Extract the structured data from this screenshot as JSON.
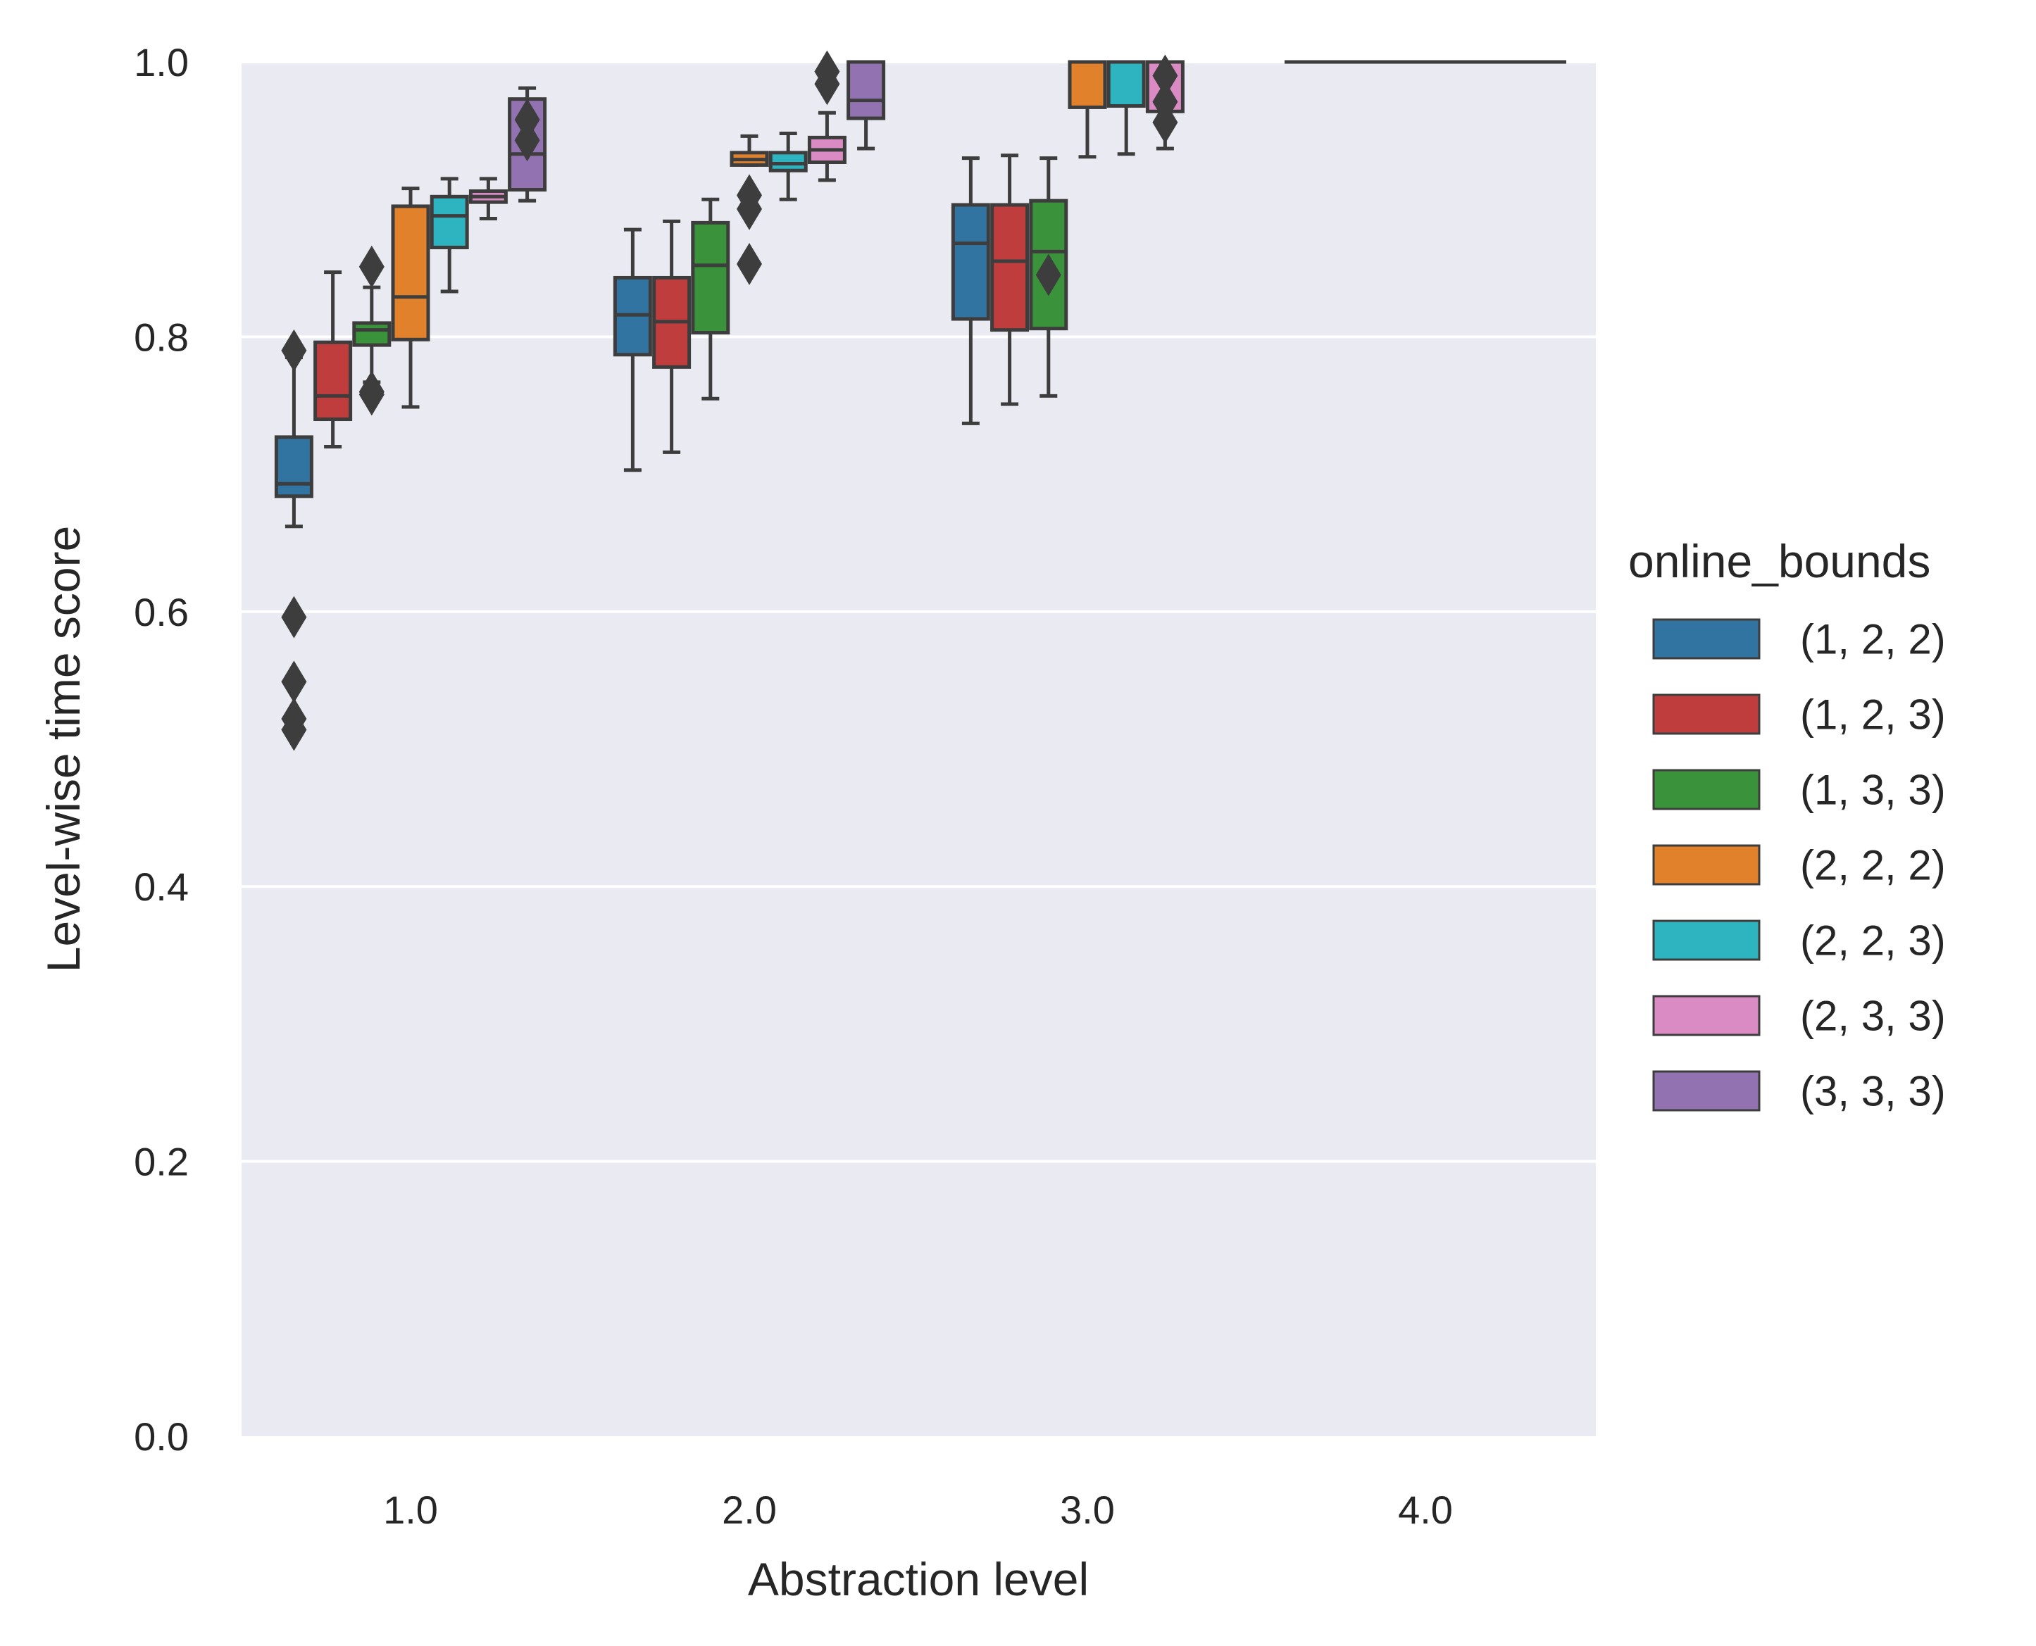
{
  "chart_data": {
    "type": "box",
    "xlabel": "Abstraction level",
    "ylabel": "Level-wise time score",
    "categories": [
      "1.0",
      "2.0",
      "3.0",
      "4.0"
    ],
    "ylim": [
      0.0,
      1.0
    ],
    "yticks": [
      "0.0",
      "0.2",
      "0.4",
      "0.6",
      "0.8",
      "1.0"
    ],
    "grid": true,
    "legend": {
      "title": "online_bounds",
      "placement": "right"
    },
    "series": [
      {
        "name": "(1, 2, 2)",
        "color": "#3274a1",
        "boxes": [
          {
            "category": "1.0",
            "whislo": 0.662,
            "q1": 0.684,
            "med": 0.693,
            "q3": 0.727,
            "whishi": 0.785,
            "fliers": [
              0.596,
              0.549,
              0.522,
              0.514,
              0.79
            ]
          },
          {
            "category": "2.0",
            "whislo": 0.703,
            "q1": 0.787,
            "med": 0.816,
            "q3": 0.843,
            "whishi": 0.878,
            "fliers": []
          },
          {
            "category": "3.0",
            "whislo": 0.737,
            "q1": 0.813,
            "med": 0.868,
            "q3": 0.896,
            "whishi": 0.93,
            "fliers": []
          }
        ]
      },
      {
        "name": "(1, 2, 3)",
        "color": "#c03d3e",
        "boxes": [
          {
            "category": "1.0",
            "whislo": 0.72,
            "q1": 0.74,
            "med": 0.757,
            "q3": 0.796,
            "whishi": 0.847,
            "fliers": []
          },
          {
            "category": "2.0",
            "whislo": 0.716,
            "q1": 0.778,
            "med": 0.811,
            "q3": 0.843,
            "whishi": 0.884,
            "fliers": []
          },
          {
            "category": "3.0",
            "whislo": 0.751,
            "q1": 0.805,
            "med": 0.855,
            "q3": 0.896,
            "whishi": 0.932,
            "fliers": []
          }
        ]
      },
      {
        "name": "(1, 3, 3)",
        "color": "#3a923a",
        "boxes": [
          {
            "category": "1.0",
            "whislo": 0.767,
            "q1": 0.794,
            "med": 0.805,
            "q3": 0.81,
            "whishi": 0.836,
            "fliers": [
              0.758,
              0.76,
              0.851
            ]
          },
          {
            "category": "2.0",
            "whislo": 0.755,
            "q1": 0.803,
            "med": 0.852,
            "q3": 0.883,
            "whishi": 0.9,
            "fliers": []
          },
          {
            "category": "3.0",
            "whislo": 0.757,
            "q1": 0.806,
            "med": 0.862,
            "q3": 0.899,
            "whishi": 0.93,
            "fliers": [
              0.845
            ]
          }
        ]
      },
      {
        "name": "(2, 2, 2)",
        "color": "#e1812c",
        "boxes": [
          {
            "category": "1.0",
            "whislo": 0.749,
            "q1": 0.798,
            "med": 0.829,
            "q3": 0.895,
            "whishi": 0.908,
            "fliers": []
          },
          {
            "category": "2.0",
            "whislo": 0.925,
            "q1": 0.925,
            "med": 0.929,
            "q3": 0.934,
            "whishi": 0.946,
            "fliers": [
              0.853,
              0.893,
              0.903
            ]
          },
          {
            "category": "3.0",
            "whislo": 0.931,
            "q1": 0.967,
            "med": 1.0,
            "q3": 1.0,
            "whishi": 1.0,
            "fliers": []
          }
        ]
      },
      {
        "name": "(2, 2, 3)",
        "color": "#2eb4c0",
        "boxes": [
          {
            "category": "1.0",
            "whislo": 0.833,
            "q1": 0.865,
            "med": 0.888,
            "q3": 0.902,
            "whishi": 0.915,
            "fliers": []
          },
          {
            "category": "2.0",
            "whislo": 0.9,
            "q1": 0.921,
            "med": 0.926,
            "q3": 0.934,
            "whishi": 0.948,
            "fliers": []
          },
          {
            "category": "3.0",
            "whislo": 0.933,
            "q1": 0.968,
            "med": 1.0,
            "q3": 1.0,
            "whishi": 1.0,
            "fliers": []
          }
        ]
      },
      {
        "name": "(2, 3, 3)",
        "color": "#da8bc3",
        "boxes": [
          {
            "category": "1.0",
            "whislo": 0.886,
            "q1": 0.898,
            "med": 0.902,
            "q3": 0.906,
            "whishi": 0.915,
            "fliers": []
          },
          {
            "category": "2.0",
            "whislo": 0.914,
            "q1": 0.927,
            "med": 0.936,
            "q3": 0.945,
            "whishi": 0.963,
            "fliers": [
              0.984,
              0.993
            ]
          },
          {
            "category": "3.0",
            "whislo": 0.937,
            "q1": 0.964,
            "med": 1.0,
            "q3": 1.0,
            "whishi": 1.0,
            "fliers": [
              0.956,
              0.971,
              0.99
            ]
          }
        ]
      },
      {
        "name": "(3, 3, 3)",
        "color": "#9372b2",
        "boxes": [
          {
            "category": "1.0",
            "whislo": 0.899,
            "q1": 0.907,
            "med": 0.933,
            "q3": 0.973,
            "whishi": 0.981,
            "fliers": [
              0.943,
              0.958
            ]
          },
          {
            "category": "2.0",
            "whislo": 0.937,
            "q1": 0.959,
            "med": 0.972,
            "q3": 1.0,
            "whishi": 1.0,
            "fliers": []
          },
          {
            "category": "4.0",
            "whislo": 1.0,
            "q1": 1.0,
            "med": 1.0,
            "q3": 1.0,
            "whishi": 1.0,
            "fliers": []
          }
        ]
      }
    ]
  }
}
